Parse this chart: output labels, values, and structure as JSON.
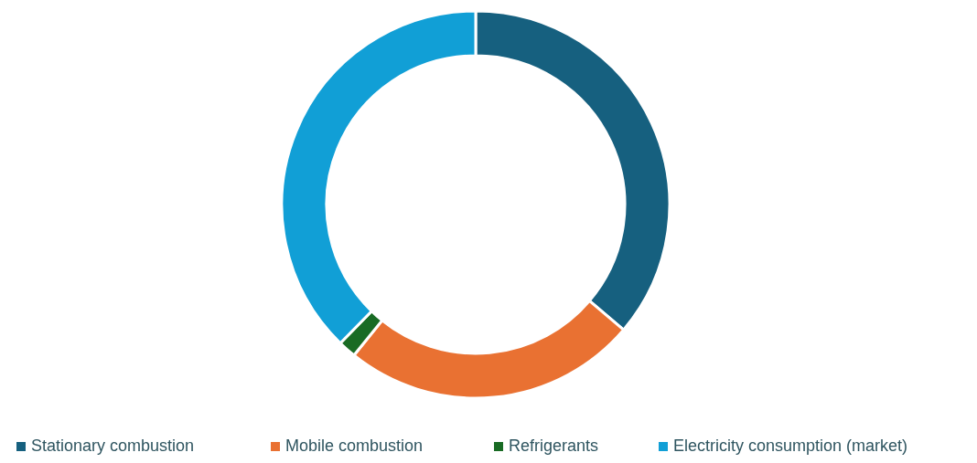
{
  "chart_data": {
    "type": "donut",
    "categories": [
      "Stationary combustion",
      "Mobile combustion",
      "Refrigerants",
      "Electricity consumption (market)"
    ],
    "values": [
      36.2,
      24.6,
      1.5,
      37.7
    ],
    "colors": [
      "#16607f",
      "#e97132",
      "#196b24",
      "#119fd6"
    ],
    "legend": "bottom"
  }
}
